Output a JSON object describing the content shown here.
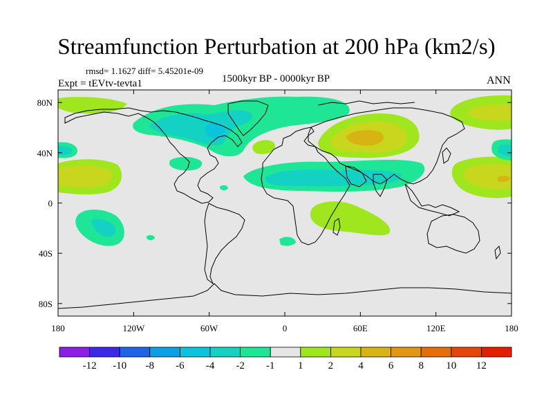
{
  "title": "Streamfunction Perturbation at 200 hPa (km2/s)",
  "stats_line": "rmsd= 1.1627 diff= 5.45201e-09",
  "time_period": "1500kyr BP - 0000kyr BP",
  "experiment": "Expt = tEVtv-tevta1",
  "season": "ANN",
  "x_axis": {
    "ticks": [
      {
        "lon": -180,
        "label": "180"
      },
      {
        "lon": -120,
        "label": "120W"
      },
      {
        "lon": -60,
        "label": "60W"
      },
      {
        "lon": 0,
        "label": "0"
      },
      {
        "lon": 60,
        "label": "60E"
      },
      {
        "lon": 120,
        "label": "120E"
      },
      {
        "lon": 180,
        "label": "180"
      }
    ]
  },
  "y_axis": {
    "ticks": [
      {
        "lat": 80,
        "label": "80N"
      },
      {
        "lat": 40,
        "label": "40N"
      },
      {
        "lat": 0,
        "label": "0"
      },
      {
        "lat": -40,
        "label": "40S"
      },
      {
        "lat": -80,
        "label": "80S"
      }
    ]
  },
  "colorbar": {
    "colors": [
      "#8c1ee6",
      "#3c28e6",
      "#1e64e6",
      "#0aa0e6",
      "#0ac3dc",
      "#14d2c3",
      "#1ee696",
      "#e6e6e6",
      "#a0e61e",
      "#c8d71e",
      "#d7b414",
      "#e19614",
      "#e66e0a",
      "#e6460a",
      "#e61e00"
    ],
    "labels": [
      "-12",
      "-10",
      "-8",
      "-6",
      "-4",
      "-2",
      "-1",
      "1",
      "2",
      "4",
      "6",
      "8",
      "10",
      "12"
    ]
  },
  "chart_data": {
    "type": "contour-map",
    "title": "Streamfunction Perturbation at 200 hPa (km2/s)",
    "variable": "Streamfunction Perturbation",
    "level": "200 hPa",
    "units": "km2/s",
    "lon_range": [
      -180,
      180
    ],
    "lat_range": [
      -90,
      90
    ],
    "levels": [
      -12,
      -10,
      -8,
      -6,
      -4,
      -2,
      -1,
      1,
      2,
      4,
      6,
      8,
      10,
      12
    ],
    "features": [
      {
        "name": "north-atlantic-low",
        "lon": -70,
        "lat": 60,
        "value_range": [
          -4,
          -1
        ]
      },
      {
        "name": "north-pacific-high",
        "lon": -160,
        "lat": 25,
        "value_range": [
          1,
          2
        ]
      },
      {
        "name": "north-pacific-low",
        "lon": -178,
        "lat": 45,
        "value_range": [
          -2,
          -1
        ]
      },
      {
        "name": "eurasia-high",
        "lon": 60,
        "lat": 52,
        "value_range": [
          2,
          6
        ]
      },
      {
        "name": "west-pacific-high",
        "lon": 160,
        "lat": 25,
        "value_range": [
          2,
          4
        ]
      },
      {
        "name": "tropical-low-band",
        "lon": 40,
        "lat": 20,
        "value_range": [
          -2,
          -1
        ]
      },
      {
        "name": "south-pacific-low",
        "lon": -145,
        "lat": -18,
        "value_range": [
          -4,
          -1
        ]
      },
      {
        "name": "indian-ocean-high",
        "lon": 50,
        "lat": -15,
        "value_range": [
          1,
          2
        ]
      },
      {
        "name": "arctic-high",
        "lon": 175,
        "lat": 75,
        "value_range": [
          1,
          2
        ]
      }
    ]
  }
}
